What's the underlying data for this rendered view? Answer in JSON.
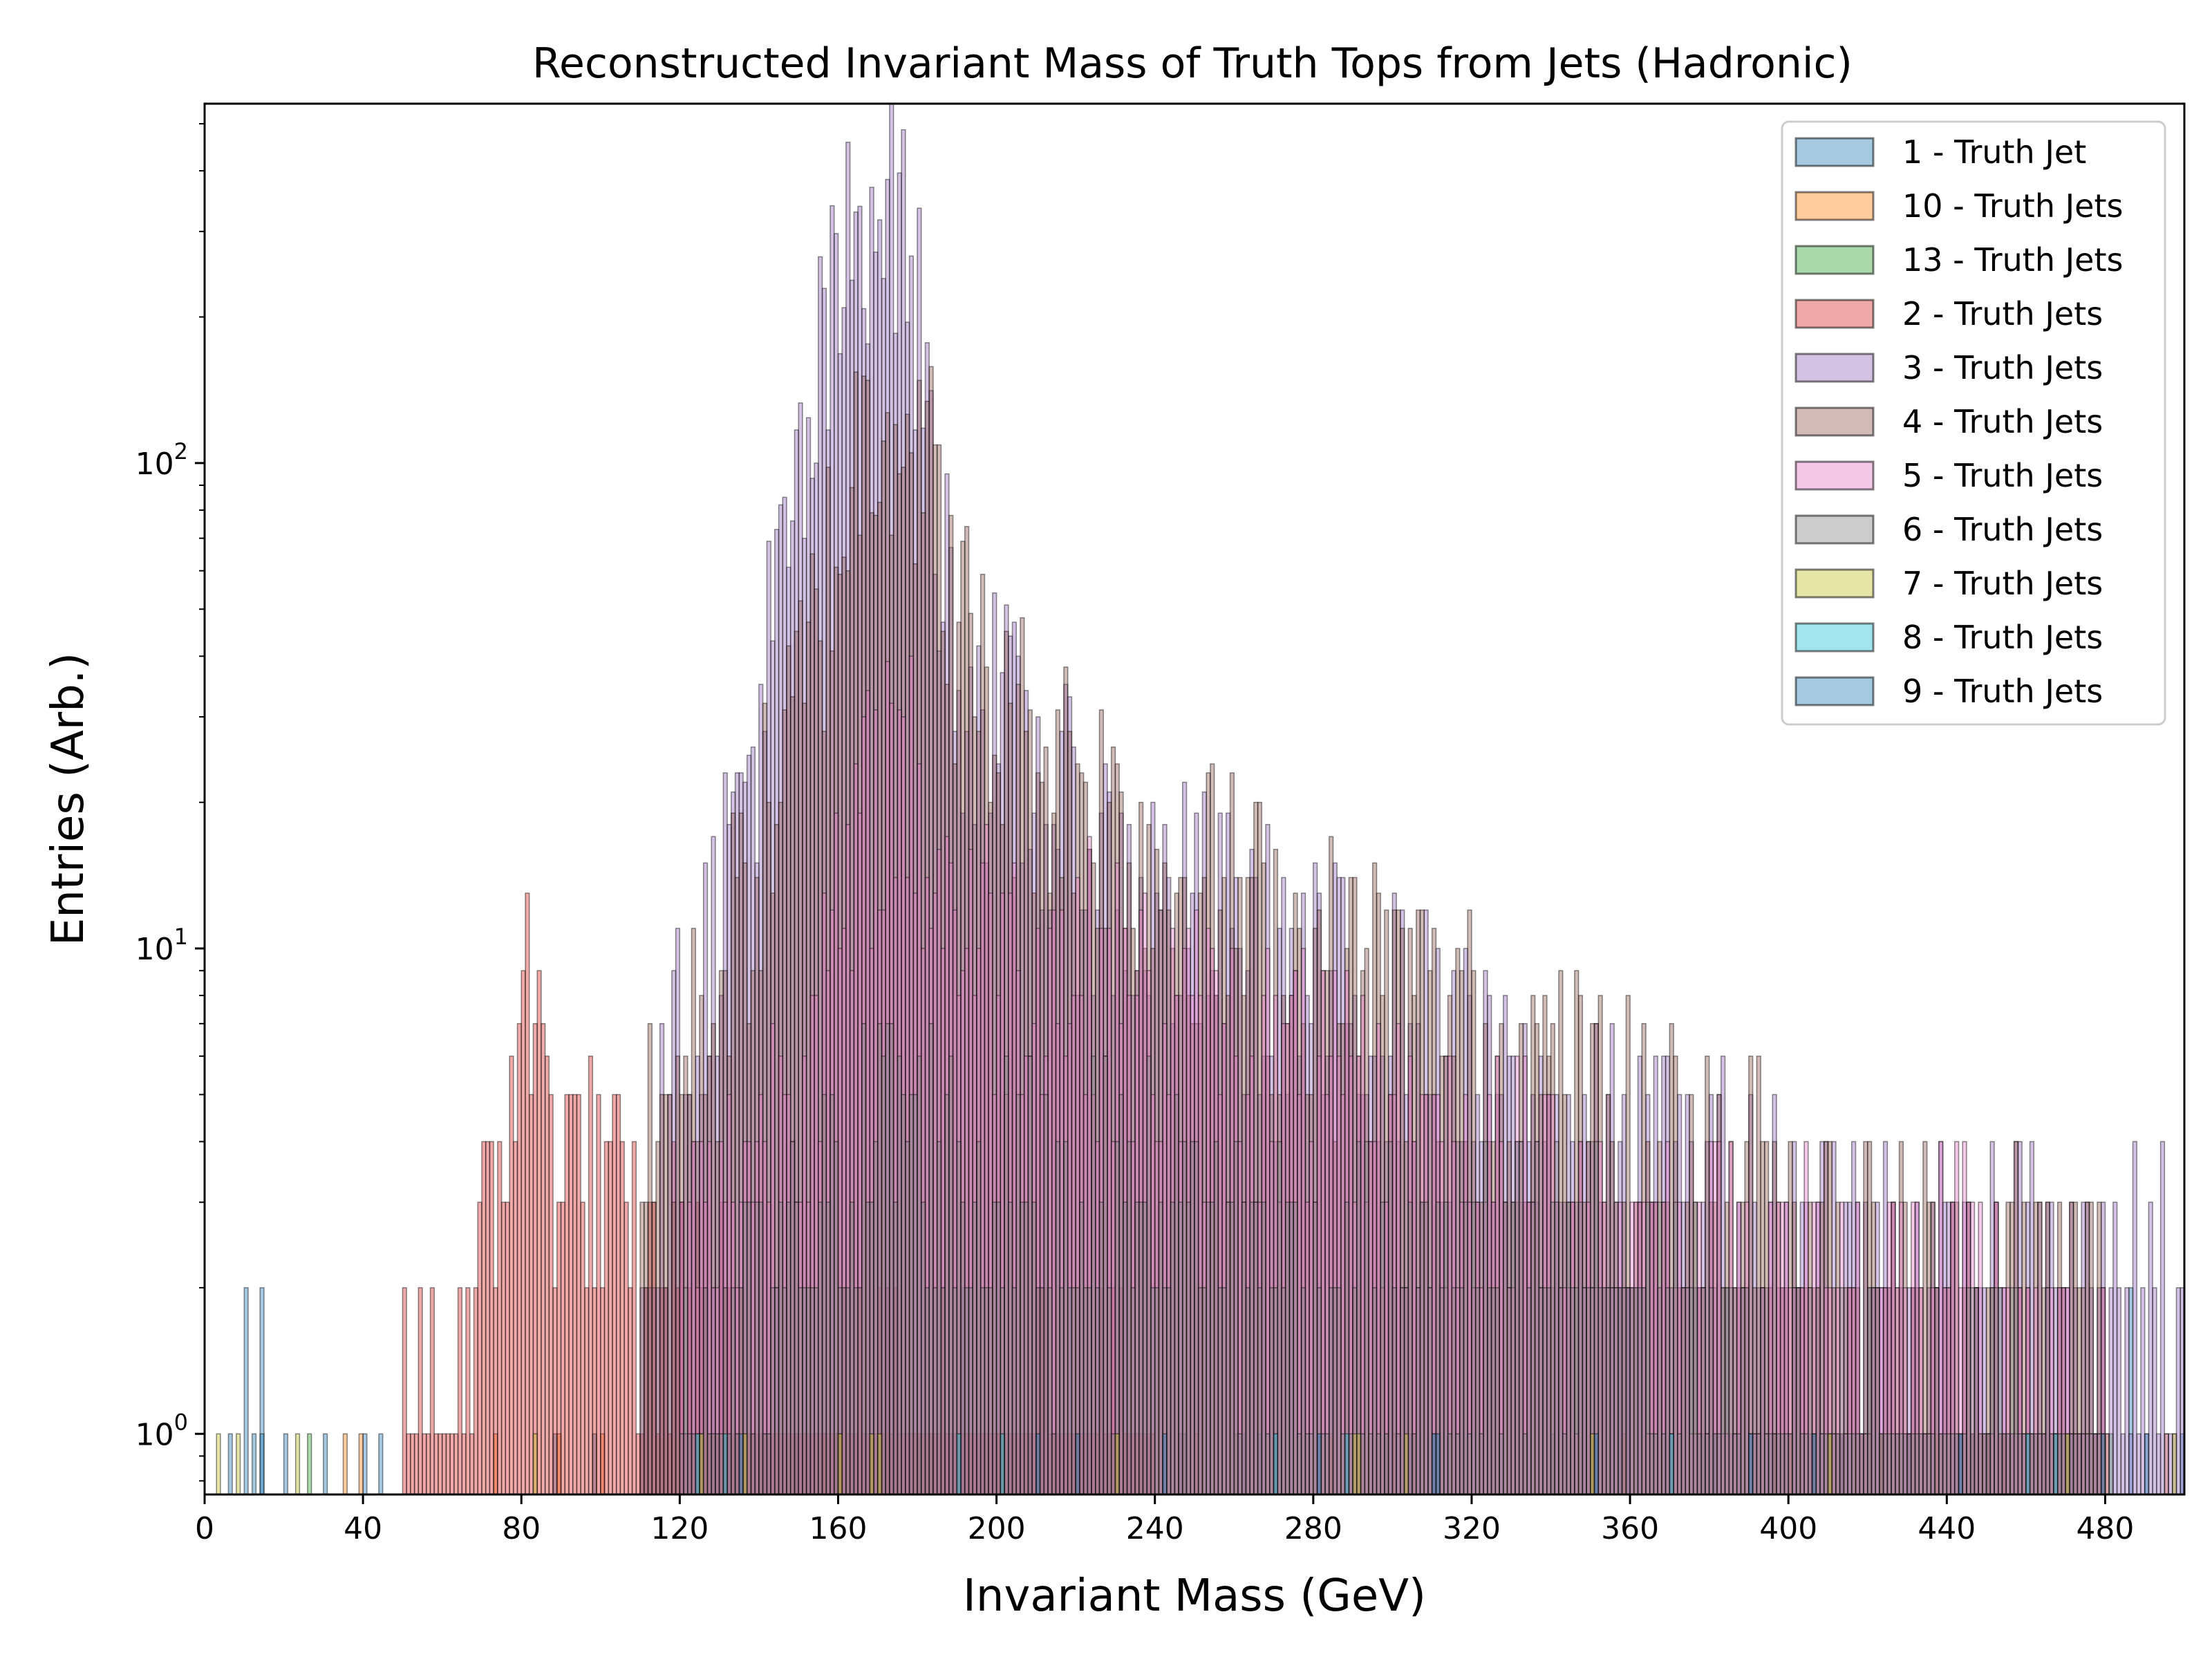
{
  "chart_data": {
    "type": "histogram",
    "title": "Reconstructed Invariant Mass of Truth Tops from Jets (Hadronic)",
    "xlabel": "Invariant Mass (GeV)",
    "ylabel": "Entries (Arb.)",
    "xlim": [
      0,
      500
    ],
    "ylim": [
      0.75,
      550
    ],
    "yscale": "log",
    "x_ticks": [
      "0",
      "40",
      "80",
      "120",
      "160",
      "200",
      "240",
      "280",
      "320",
      "360",
      "400",
      "440",
      "480"
    ],
    "y_ticks": [
      {
        "base": "10",
        "exp": "0",
        "value": 1
      },
      {
        "base": "10",
        "exp": "1",
        "value": 10
      },
      {
        "base": "10",
        "exp": "2",
        "value": 100
      }
    ],
    "legend_position": "upper right",
    "grid": false,
    "series": [
      {
        "name": "1 - Truth Jet",
        "color": "#1f77b4",
        "x": [
          6,
          10,
          12,
          14,
          20,
          30,
          40,
          44
        ],
        "y": [
          1,
          2,
          1,
          2,
          1,
          1,
          1,
          1
        ]
      },
      {
        "name": "10 - Truth Jets",
        "color": "#ff7f0e",
        "x": [
          100,
          160,
          200,
          250,
          300,
          350,
          400,
          450,
          480
        ],
        "y": [
          1,
          1,
          1,
          1,
          1,
          1,
          1,
          1,
          1
        ]
      },
      {
        "name": "13 - Truth Jets",
        "color": "#2ca02c",
        "x": [
          180,
          260,
          340,
          420
        ],
        "y": [
          1,
          1,
          1,
          1
        ]
      },
      {
        "name": "2 - Truth Jets",
        "color": "#d62728",
        "x": [
          50,
          60,
          70,
          76,
          80,
          84,
          90,
          100,
          110,
          120,
          140,
          160,
          180,
          200,
          240
        ],
        "y": [
          1,
          1,
          2,
          4,
          9,
          6,
          4,
          3,
          2,
          2,
          1,
          1,
          1,
          1,
          1
        ]
      },
      {
        "name": "3 - Truth Jets",
        "color": "#9467bd",
        "x": [
          110,
          120,
          130,
          140,
          150,
          156,
          162,
          166,
          170,
          172,
          174,
          178,
          182,
          186,
          190,
          196,
          200,
          210,
          220,
          240,
          260,
          280,
          300,
          320,
          340,
          360,
          380,
          400,
          440,
          480,
          500
        ],
        "y": [
          2,
          6,
          12,
          30,
          80,
          150,
          240,
          330,
          390,
          400,
          370,
          260,
          140,
          65,
          40,
          30,
          28,
          22,
          16,
          12,
          10,
          8,
          7,
          5,
          4,
          3.5,
          3,
          2.5,
          2,
          2,
          2
        ]
      },
      {
        "name": "4 - Truth Jets",
        "color": "#8c564b",
        "x": [
          110,
          120,
          130,
          140,
          150,
          160,
          166,
          170,
          174,
          180,
          186,
          190,
          196,
          200,
          210,
          220,
          240,
          260,
          280,
          300,
          320,
          340,
          360,
          400,
          440,
          480
        ],
        "y": [
          3,
          5,
          8,
          15,
          30,
          70,
          110,
          135,
          140,
          110,
          70,
          45,
          35,
          28,
          25,
          22,
          15,
          12,
          9,
          8,
          6,
          5,
          4,
          3,
          2,
          2
        ]
      },
      {
        "name": "5 - Truth Jets",
        "color": "#e377c2",
        "x": [
          120,
          130,
          140,
          150,
          160,
          166,
          170,
          174,
          178,
          184,
          190,
          200,
          220,
          240,
          260,
          280,
          300,
          320,
          340,
          360,
          400,
          440,
          480
        ],
        "y": [
          2,
          3,
          4,
          6,
          10,
          16,
          22,
          25,
          22,
          15,
          12,
          10,
          9,
          7,
          6,
          5,
          4,
          3.5,
          3,
          2.5,
          2,
          2,
          1
        ]
      },
      {
        "name": "6 - Truth Jets",
        "color": "#7f7f7f",
        "x": [
          120,
          150,
          170,
          174,
          180,
          200,
          240,
          280,
          320,
          360,
          400,
          440,
          480
        ],
        "y": [
          1,
          2,
          4,
          5,
          4,
          3,
          3,
          2,
          2,
          2,
          1,
          1,
          1
        ]
      },
      {
        "name": "7 - Truth Jets",
        "color": "#bcbd22",
        "x": [
          170,
          230,
          290,
          350,
          410,
          470
        ],
        "y": [
          1,
          1,
          1,
          1,
          1,
          1
        ]
      },
      {
        "name": "8 - Truth Jets",
        "color": "#17becf",
        "x": [
          190,
          270,
          370,
          460
        ],
        "y": [
          1,
          1,
          1,
          1
        ]
      },
      {
        "name": "9 - Truth Jets",
        "color": "#1f77b4",
        "x": [
          210,
          310,
          390,
          490
        ],
        "y": [
          1,
          1,
          1,
          1
        ]
      }
    ]
  }
}
